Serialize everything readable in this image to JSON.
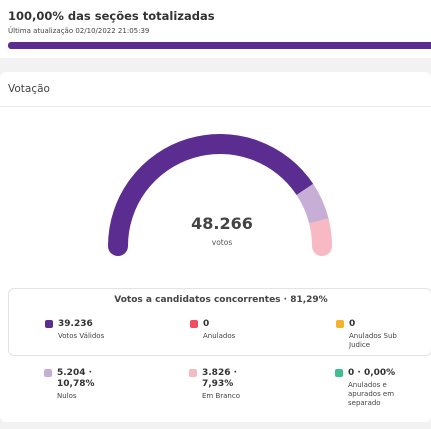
{
  "header": {
    "title": "100,00% das seções totalizadas",
    "last_update": "Última atualização 02/10/2022 21:05:39",
    "progress": 1.0,
    "progress_color": "#5c2d91"
  },
  "votacao": {
    "title": "Votação",
    "gauge": {
      "total": "48.266",
      "total_label": "votos",
      "segments": [
        {
          "name": "Votos Válidos",
          "value": 39236,
          "color": "#5c2d91"
        },
        {
          "name": "Nulos",
          "value": 5204,
          "color": "#c6aed6"
        },
        {
          "name": "Em Branco",
          "value": 3826,
          "color": "#f7b9c4"
        }
      ]
    },
    "concorrentes": {
      "title": "Votos a candidatos concorrentes · 81,29%",
      "stats": [
        {
          "value": "39.236",
          "label": "Votos Válidos",
          "color": "#5c2d91"
        },
        {
          "value": "0",
          "label": "Anulados",
          "color": "#f04e5e"
        },
        {
          "value": "0",
          "label": "Anulados Sub Judice",
          "color": "#f4b32b"
        }
      ]
    },
    "others": [
      {
        "value": "5.204 · 10,78%",
        "label": "Nulos",
        "color": "#c6aed6"
      },
      {
        "value": "3.826 · 7,93%",
        "label": "Em Branco",
        "color": "#f7b9c4"
      },
      {
        "value": "0 · 0,00%",
        "label": "Anulados e apurados em separado",
        "color": "#3dbf8f"
      }
    ]
  }
}
